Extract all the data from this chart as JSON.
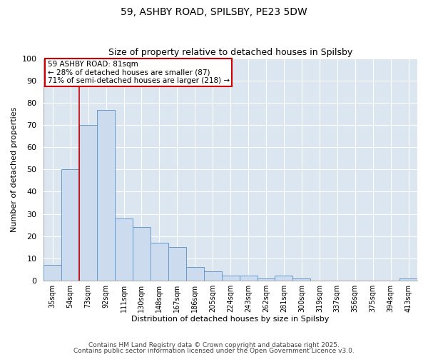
{
  "title1": "59, ASHBY ROAD, SPILSBY, PE23 5DW",
  "title2": "Size of property relative to detached houses in Spilsby",
  "xlabel": "Distribution of detached houses by size in Spilsby",
  "ylabel": "Number of detached properties",
  "categories": [
    "35sqm",
    "54sqm",
    "73sqm",
    "92sqm",
    "111sqm",
    "130sqm",
    "148sqm",
    "167sqm",
    "186sqm",
    "205sqm",
    "224sqm",
    "243sqm",
    "262sqm",
    "281sqm",
    "300sqm",
    "319sqm",
    "337sqm",
    "356sqm",
    "375sqm",
    "394sqm",
    "413sqm"
  ],
  "values": [
    7,
    50,
    70,
    77,
    28,
    24,
    17,
    15,
    6,
    4,
    2,
    2,
    1,
    2,
    1,
    0,
    0,
    0,
    0,
    0,
    1
  ],
  "bar_color": "#ccdcee",
  "bar_edge_color": "#6699cc",
  "background_color": "#dce6f0",
  "grid_color": "#ffffff",
  "vline_x": 1.5,
  "vline_color": "#cc0000",
  "annotation_text": "59 ASHBY ROAD: 81sqm\n← 28% of detached houses are smaller (87)\n71% of semi-detached houses are larger (218) →",
  "annotation_box_edge_color": "#cc0000",
  "annotation_box_face_color": "#ffffff",
  "ylim": [
    0,
    100
  ],
  "yticks": [
    0,
    10,
    20,
    30,
    40,
    50,
    60,
    70,
    80,
    90,
    100
  ],
  "fig_bg_color": "#ffffff",
  "footer1": "Contains HM Land Registry data © Crown copyright and database right 2025.",
  "footer2": "Contains public sector information licensed under the Open Government Licence v3.0."
}
